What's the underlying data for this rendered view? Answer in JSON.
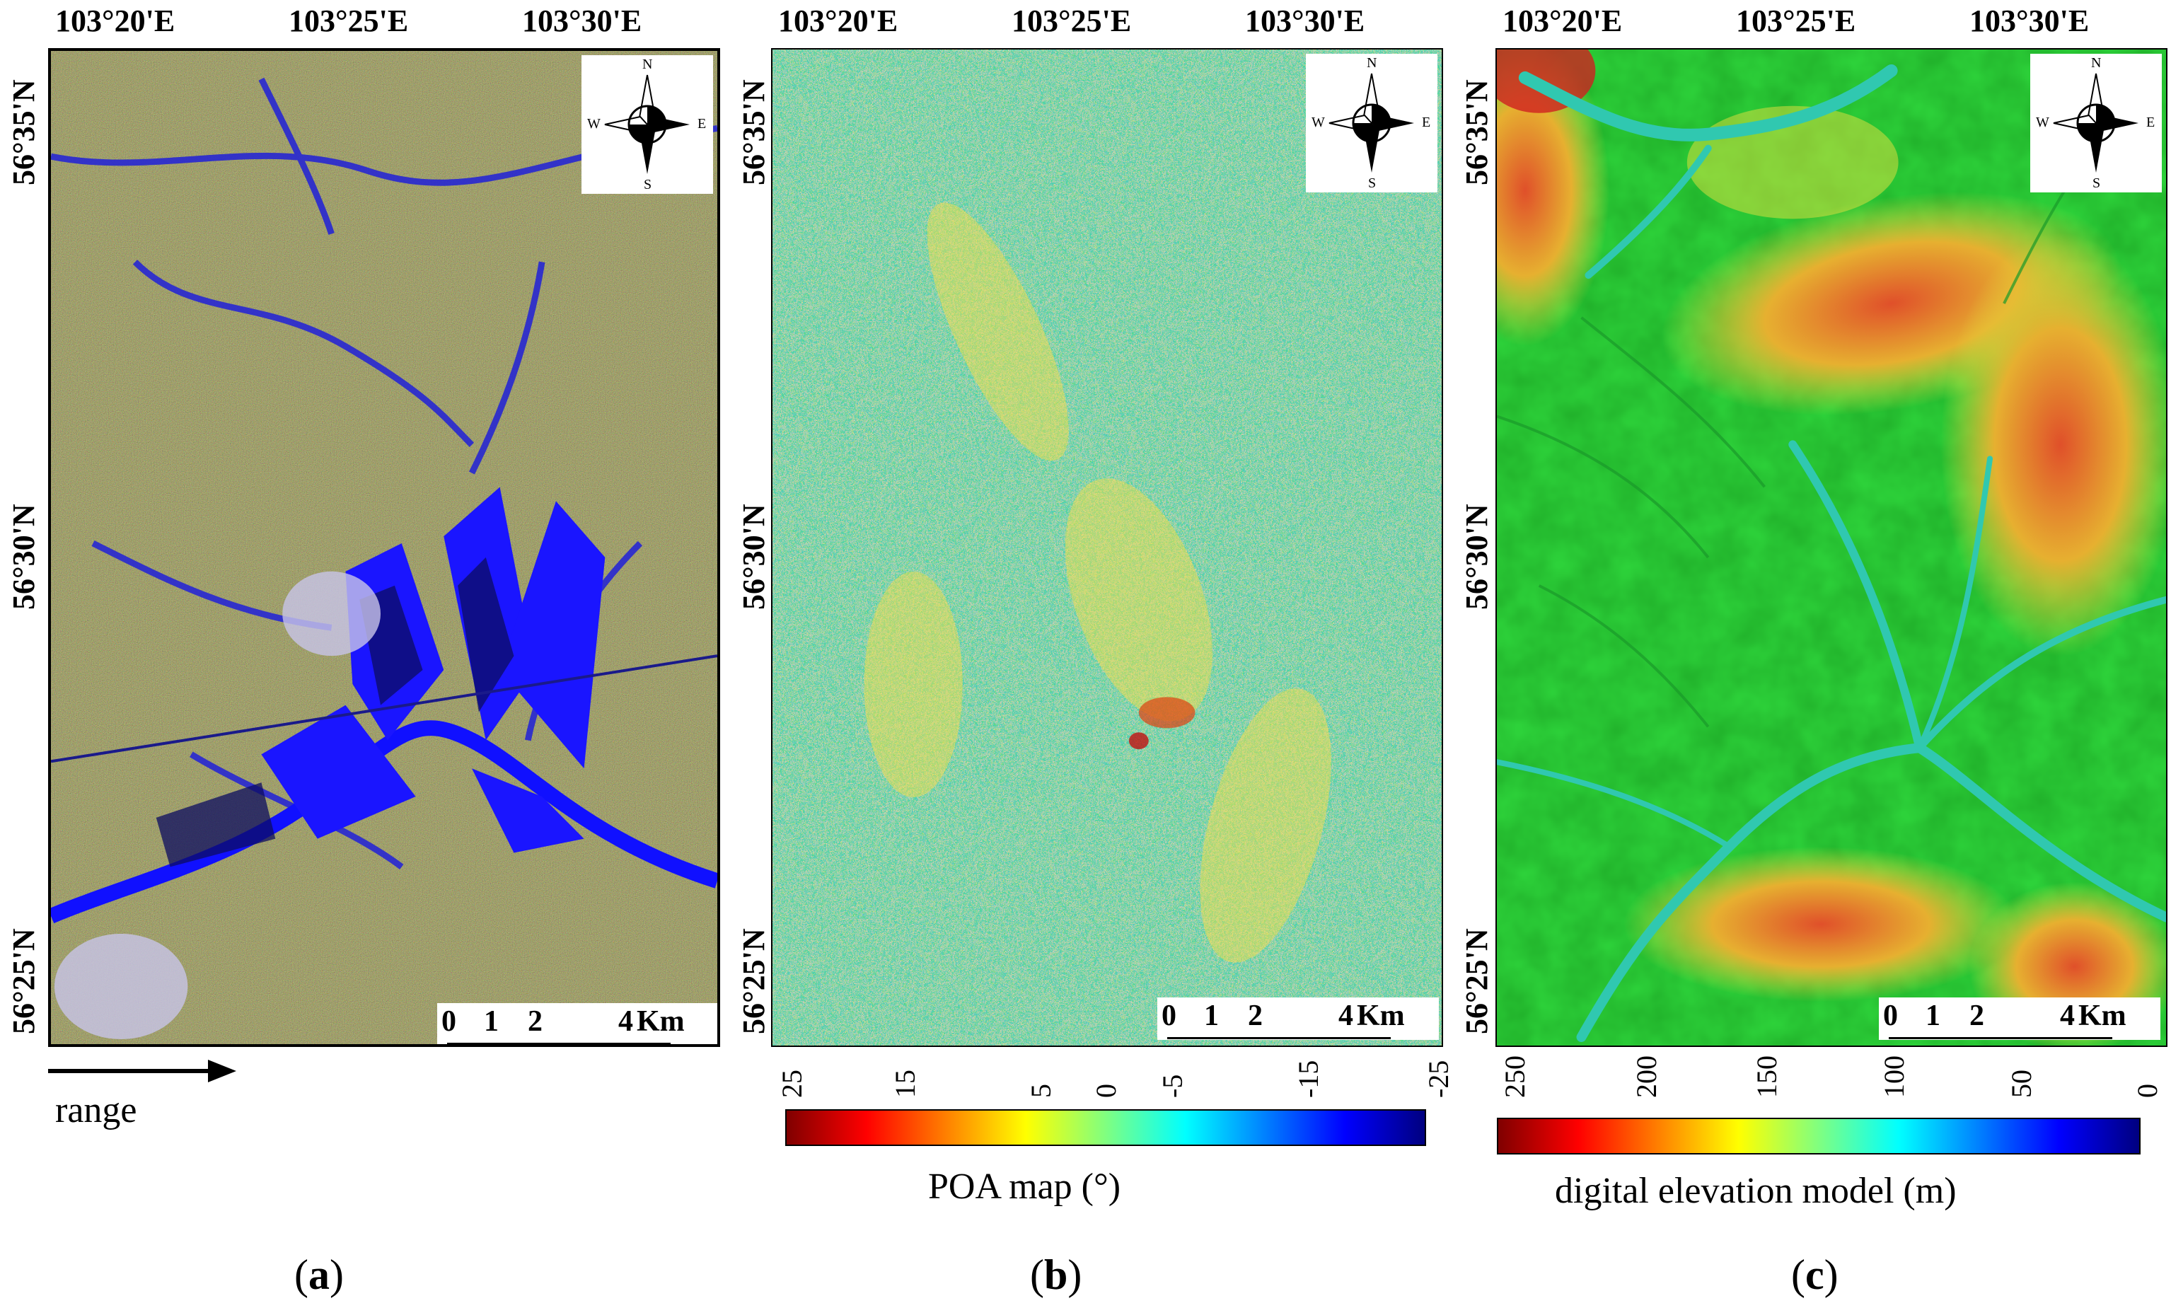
{
  "panels": [
    {
      "id": "a",
      "lon_labels": [
        "103°20'E",
        "103°25'E",
        "103°30'E"
      ],
      "lat_labels": [
        "56°35'N",
        "56°30'N",
        "56°25'N"
      ],
      "compass": {
        "n": "N",
        "s": "S",
        "e": "E",
        "w": "W"
      },
      "scale": {
        "t0": "0",
        "t1": "1",
        "t2": "2",
        "t4": "4",
        "unit": "Km"
      },
      "range_label": "range",
      "caption": {
        "open": "(",
        "letter": "a",
        "close": ")"
      }
    },
    {
      "id": "b",
      "lon_labels": [
        "103°20'E",
        "103°25'E",
        "103°30'E"
      ],
      "lat_labels": [
        "56°35'N",
        "56°30'N",
        "56°25'N"
      ],
      "compass": {
        "n": "N",
        "s": "S",
        "e": "E",
        "w": "W"
      },
      "scale": {
        "t0": "0",
        "t1": "1",
        "t2": "2",
        "t4": "4",
        "unit": "Km"
      },
      "colorbar": {
        "ticks": [
          "25",
          "15",
          "5",
          "0",
          "-5",
          "-15",
          "-25"
        ],
        "title": "POA map (°)"
      },
      "caption": {
        "open": "(",
        "letter": "b",
        "close": ")"
      }
    },
    {
      "id": "c",
      "lon_labels": [
        "103°20'E",
        "103°25'E",
        "103°30'E"
      ],
      "lat_labels": [
        "56°35'N",
        "56°30'N",
        "56°25'N"
      ],
      "compass": {
        "n": "N",
        "s": "S",
        "e": "E",
        "w": "W"
      },
      "scale": {
        "t0": "0",
        "t1": "1",
        "t2": "2",
        "t4": "4",
        "unit": "Km"
      },
      "colorbar": {
        "ticks": [
          "250",
          "200",
          "150",
          "100",
          "50",
          "0"
        ],
        "title": "digital elevation model (m)"
      },
      "caption": {
        "open": "(",
        "letter": "c",
        "close": ")"
      }
    }
  ],
  "colors": {
    "jet_dark_red": "#800000",
    "jet_red": "#ff0000",
    "jet_orange": "#ff8000",
    "jet_yellow": "#ffff00",
    "jet_green": "#80ff80",
    "jet_cyan": "#00ffff",
    "jet_blue": "#0000ff",
    "jet_dark_blue": "#000080",
    "sar_olive": "#8a8a3a",
    "sar_blue": "#1a1aff",
    "dem_green": "#22cc33"
  }
}
